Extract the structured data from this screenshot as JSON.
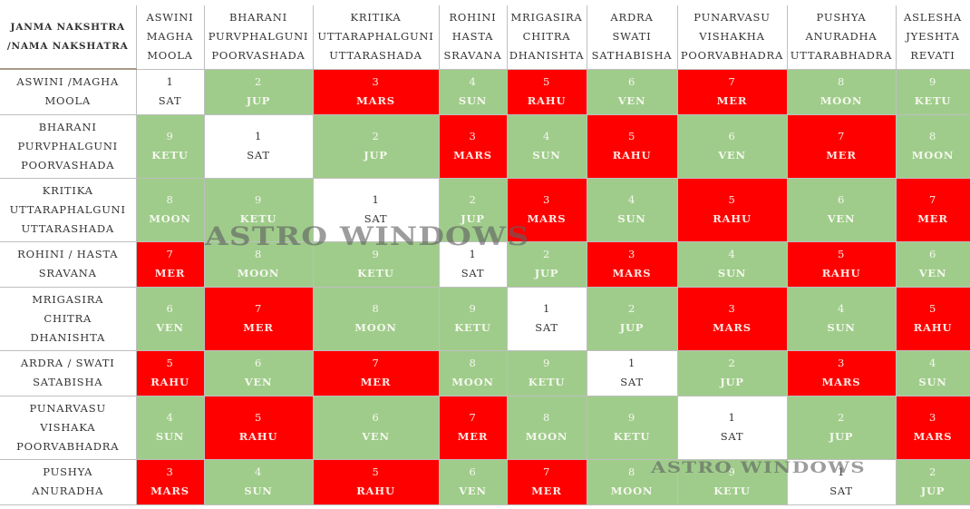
{
  "corner_header": [
    "JANMA NAKSHTRA",
    "/NAMA NAKSHATRA"
  ],
  "columns": [
    [
      "ASWINI",
      "MAGHA",
      "MOOLA"
    ],
    [
      "BHARANI",
      "PURVPHALGUNI",
      "POORVASHADA"
    ],
    [
      "KRITIKA",
      "UTTARAPHALGUNI",
      "UTTARASHADA"
    ],
    [
      "ROHINI",
      "HASTA",
      "SRAVANA"
    ],
    [
      "MRIGASIRA",
      "CHITRA",
      "DHANISHTA"
    ],
    [
      "ARDRA",
      "SWATI",
      "SATHABISHA"
    ],
    [
      "PUNARVASU",
      "VISHAKHA",
      "POORVABHADRA"
    ],
    [
      "PUSHYA",
      "ANURADHA",
      "UTTARABHADRA"
    ],
    [
      "ASLESHA",
      "JYESHTA",
      "REVATI"
    ]
  ],
  "rows": [
    {
      "label": [
        "ASWINI /MAGHA",
        "MOOLA"
      ],
      "cells": [
        {
          "num": "1",
          "planet": "SAT",
          "color": "white"
        },
        {
          "num": "2",
          "planet": "JUP",
          "color": "green"
        },
        {
          "num": "3",
          "planet": "MARS",
          "color": "red"
        },
        {
          "num": "4",
          "planet": "SUN",
          "color": "green"
        },
        {
          "num": "5",
          "planet": "RAHU",
          "color": "red"
        },
        {
          "num": "6",
          "planet": "VEN",
          "color": "green"
        },
        {
          "num": "7",
          "planet": "MER",
          "color": "red"
        },
        {
          "num": "8",
          "planet": "MOON",
          "color": "green"
        },
        {
          "num": "9",
          "planet": "KETU",
          "color": "green"
        }
      ]
    },
    {
      "label": [
        "BHARANI",
        "PURVPHALGUNI",
        "POORVASHADA"
      ],
      "cells": [
        {
          "num": "9",
          "planet": "KETU",
          "color": "green"
        },
        {
          "num": "1",
          "planet": "SAT",
          "color": "white"
        },
        {
          "num": "2",
          "planet": "JUP",
          "color": "green"
        },
        {
          "num": "3",
          "planet": "MARS",
          "color": "red"
        },
        {
          "num": "4",
          "planet": "SUN",
          "color": "green"
        },
        {
          "num": "5",
          "planet": "RAHU",
          "color": "red"
        },
        {
          "num": "6",
          "planet": "VEN",
          "color": "green"
        },
        {
          "num": "7",
          "planet": "MER",
          "color": "red"
        },
        {
          "num": "8",
          "planet": "MOON",
          "color": "green"
        }
      ]
    },
    {
      "label": [
        "KRITIKA",
        "UTTARAPHALGUNI",
        "UTTARASHADA"
      ],
      "cells": [
        {
          "num": "8",
          "planet": "MOON",
          "color": "green"
        },
        {
          "num": "9",
          "planet": "KETU",
          "color": "green"
        },
        {
          "num": "1",
          "planet": "SAT",
          "color": "white"
        },
        {
          "num": "2",
          "planet": "JUP",
          "color": "green"
        },
        {
          "num": "3",
          "planet": "MARS",
          "color": "red"
        },
        {
          "num": "4",
          "planet": "SUN",
          "color": "green"
        },
        {
          "num": "5",
          "planet": "RAHU",
          "color": "red"
        },
        {
          "num": "6",
          "planet": "VEN",
          "color": "green"
        },
        {
          "num": "7",
          "planet": "MER",
          "color": "red"
        }
      ]
    },
    {
      "label": [
        "ROHINI / HASTA",
        "SRAVANA"
      ],
      "cells": [
        {
          "num": "7",
          "planet": "MER",
          "color": "red"
        },
        {
          "num": "8",
          "planet": "MOON",
          "color": "green"
        },
        {
          "num": "9",
          "planet": "KETU",
          "color": "green"
        },
        {
          "num": "1",
          "planet": "SAT",
          "color": "white"
        },
        {
          "num": "2",
          "planet": "JUP",
          "color": "green"
        },
        {
          "num": "3",
          "planet": "MARS",
          "color": "red"
        },
        {
          "num": "4",
          "planet": "SUN",
          "color": "green"
        },
        {
          "num": "5",
          "planet": "RAHU",
          "color": "red"
        },
        {
          "num": "6",
          "planet": "VEN",
          "color": "green"
        }
      ]
    },
    {
      "label": [
        "MRIGASIRA",
        "CHITRA",
        "DHANISHTA"
      ],
      "cells": [
        {
          "num": "6",
          "planet": "VEN",
          "color": "green"
        },
        {
          "num": "7",
          "planet": "MER",
          "color": "red"
        },
        {
          "num": "8",
          "planet": "MOON",
          "color": "green"
        },
        {
          "num": "9",
          "planet": "KETU",
          "color": "green"
        },
        {
          "num": "1",
          "planet": "SAT",
          "color": "white"
        },
        {
          "num": "2",
          "planet": "JUP",
          "color": "green"
        },
        {
          "num": "3",
          "planet": "MARS",
          "color": "red"
        },
        {
          "num": "4",
          "planet": "SUN",
          "color": "green"
        },
        {
          "num": "5",
          "planet": "RAHU",
          "color": "red"
        }
      ]
    },
    {
      "label": [
        "ARDRA / SWATI",
        "SATABISHA"
      ],
      "cells": [
        {
          "num": "5",
          "planet": "RAHU",
          "color": "red"
        },
        {
          "num": "6",
          "planet": "VEN",
          "color": "green"
        },
        {
          "num": "7",
          "planet": "MER",
          "color": "red"
        },
        {
          "num": "8",
          "planet": "MOON",
          "color": "green"
        },
        {
          "num": "9",
          "planet": "KETU",
          "color": "green"
        },
        {
          "num": "1",
          "planet": "SAT",
          "color": "white"
        },
        {
          "num": "2",
          "planet": "JUP",
          "color": "green"
        },
        {
          "num": "3",
          "planet": "MARS",
          "color": "red"
        },
        {
          "num": "4",
          "planet": "SUN",
          "color": "green"
        }
      ]
    },
    {
      "label": [
        "PUNARVASU",
        "VISHAKA",
        "POORVABHADRA"
      ],
      "cells": [
        {
          "num": "4",
          "planet": "SUN",
          "color": "green"
        },
        {
          "num": "5",
          "planet": "RAHU",
          "color": "red"
        },
        {
          "num": "6",
          "planet": "VEN",
          "color": "green"
        },
        {
          "num": "7",
          "planet": "MER",
          "color": "red"
        },
        {
          "num": "8",
          "planet": "MOON",
          "color": "green"
        },
        {
          "num": "9",
          "planet": "KETU",
          "color": "green"
        },
        {
          "num": "1",
          "planet": "SAT",
          "color": "white"
        },
        {
          "num": "2",
          "planet": "JUP",
          "color": "green"
        },
        {
          "num": "3",
          "planet": "MARS",
          "color": "red"
        }
      ]
    },
    {
      "label": [
        "PUSHYA",
        "ANURADHA"
      ],
      "cells": [
        {
          "num": "3",
          "planet": "MARS",
          "color": "red"
        },
        {
          "num": "4",
          "planet": "SUN",
          "color": "green"
        },
        {
          "num": "5",
          "planet": "RAHU",
          "color": "red"
        },
        {
          "num": "6",
          "planet": "VEN",
          "color": "green"
        },
        {
          "num": "7",
          "planet": "MER",
          "color": "red"
        },
        {
          "num": "8",
          "planet": "MOON",
          "color": "green"
        },
        {
          "num": "9",
          "planet": "KETU",
          "color": "green"
        },
        {
          "num": "1",
          "planet": "SAT",
          "color": "white"
        },
        {
          "num": "2",
          "planet": "JUP",
          "color": "green"
        }
      ]
    }
  ],
  "watermarks": [
    "ASTRO WINDOWS",
    "ASTRO WINDOWS"
  ],
  "colors": {
    "green": "#9fcc8b",
    "red": "#ff0000",
    "white": "#ffffff",
    "grid_line": "#bfbfbf"
  }
}
